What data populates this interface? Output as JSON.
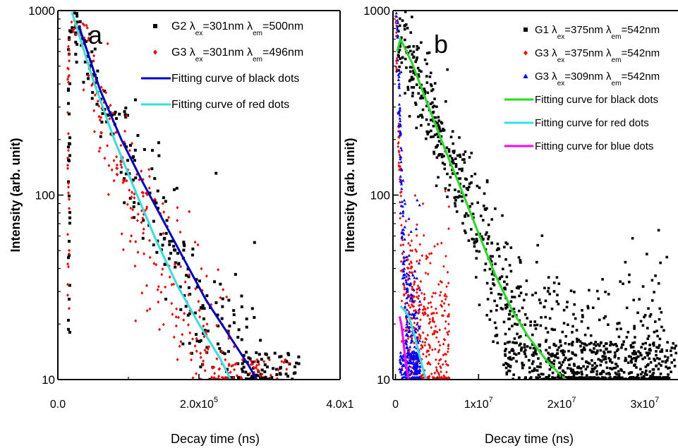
{
  "chart_data": [
    {
      "panel": "a",
      "type": "scatter",
      "y_scale": "log",
      "xlim": [
        0,
        400000
      ],
      "ylim": [
        10,
        1000
      ],
      "xlabel": "Decay time (ns)",
      "ylabel": "Intensity (arb. unit)",
      "x_ticks": [
        {
          "value": 0,
          "base": "0.0",
          "exp": ""
        },
        {
          "value": 200000,
          "base": "2.0x10",
          "exp": "5"
        },
        {
          "value": 400000,
          "base": "4.0x1",
          "exp": ""
        }
      ],
      "y_ticks": [
        {
          "value": 10,
          "label": "10"
        },
        {
          "value": 100,
          "label": "100"
        },
        {
          "value": 1000,
          "label": "1000"
        }
      ],
      "legend": [
        {
          "kind": "marker",
          "shape": "square",
          "color": "#000000",
          "parts": [
            "G2 λ",
            "ex",
            "=301nm λ",
            "em",
            "=500nm"
          ]
        },
        {
          "kind": "marker",
          "shape": "diamond",
          "color": "#ff0000",
          "parts": [
            "G3 λ",
            "ex",
            "=301nm λ",
            "em",
            "=496nm"
          ]
        },
        {
          "kind": "line",
          "color": "#0000cc",
          "label": "Fitting curve of black dots"
        },
        {
          "kind": "line",
          "color": "#33e0e0",
          "label": "Fitting curve of red dots"
        }
      ],
      "series": [
        {
          "name": "G2",
          "marker": "square",
          "color": "#000000",
          "noise": 0.09,
          "growth": 0.06,
          "decay": [
            [
              18000,
              1000
            ],
            [
              40000,
              600
            ],
            [
              60000,
              350
            ],
            [
              80000,
              220
            ],
            [
              100000,
              160
            ],
            [
              120000,
              110
            ],
            [
              140000,
              75
            ],
            [
              160000,
              52
            ],
            [
              180000,
              38
            ],
            [
              200000,
              28
            ],
            [
              220000,
              20
            ],
            [
              240000,
              15
            ],
            [
              260000,
              12
            ],
            [
              280000,
              10
            ],
            [
              300000,
              10
            ]
          ],
          "rise_x": [
            15000,
            16000,
            17000
          ],
          "rise_range": [
            15,
            900
          ],
          "tail_range": [
            10,
            14
          ],
          "tail_x": [
            260000,
            345000
          ]
        },
        {
          "name": "G3",
          "marker": "diamond",
          "color": "#ff0000",
          "noise": 0.1,
          "growth": 0.07,
          "decay": [
            [
              18000,
              1000
            ],
            [
              40000,
              550
            ],
            [
              60000,
              300
            ],
            [
              80000,
              170
            ],
            [
              100000,
              110
            ],
            [
              120000,
              70
            ],
            [
              140000,
              50
            ],
            [
              160000,
              35
            ],
            [
              180000,
              25
            ],
            [
              200000,
              18
            ],
            [
              220000,
              13
            ],
            [
              240000,
              10
            ],
            [
              250000,
              10
            ]
          ],
          "rise_x": [
            14000,
            15000,
            16000
          ],
          "rise_range": [
            16,
            950
          ],
          "tail_range": [
            10,
            13
          ],
          "tail_x": [
            220000,
            330000
          ]
        }
      ],
      "fits": [
        {
          "name": "Fitting curve of black dots",
          "color": "#0000cc",
          "points": [
            [
              30000,
              820
            ],
            [
              60000,
              370
            ],
            [
              90000,
              200
            ],
            [
              120000,
              118
            ],
            [
              150000,
              72
            ],
            [
              180000,
              44
            ],
            [
              210000,
              27
            ],
            [
              240000,
              18
            ],
            [
              270000,
              12
            ],
            [
              282000,
              10
            ]
          ]
        },
        {
          "name": "Fitting curve of red dots",
          "color": "#33e0e0",
          "points": [
            [
              20000,
              980
            ],
            [
              50000,
              420
            ],
            [
              80000,
              200
            ],
            [
              110000,
              105
            ],
            [
              140000,
              56
            ],
            [
              170000,
              32
            ],
            [
              200000,
              20
            ],
            [
              230000,
              13
            ],
            [
              245000,
              10
            ]
          ]
        }
      ],
      "panel_label": "a"
    },
    {
      "panel": "b",
      "type": "scatter",
      "y_scale": "log",
      "xlim": [
        -300000,
        34000000
      ],
      "ylim": [
        10,
        1000
      ],
      "xlabel": "Decay time (ns)",
      "ylabel": "Intensity (arb. unit)",
      "x_ticks": [
        {
          "value": 0,
          "base": "0",
          "exp": ""
        },
        {
          "value": 10000000,
          "base": "1x10",
          "exp": "7"
        },
        {
          "value": 20000000,
          "base": "2x10",
          "exp": "7"
        },
        {
          "value": 30000000,
          "base": "3x10",
          "exp": "7"
        }
      ],
      "y_ticks": [
        {
          "value": 10,
          "label": "10"
        },
        {
          "value": 100,
          "label": "100"
        },
        {
          "value": 1000,
          "label": "1000"
        }
      ],
      "legend": [
        {
          "kind": "marker",
          "shape": "square",
          "color": "#000000",
          "parts": [
            "G1 λ",
            "ex",
            "=375nm  λ",
            "em",
            "=542nm"
          ]
        },
        {
          "kind": "marker",
          "shape": "diamond",
          "color": "#ff0000",
          "parts": [
            "G3 λ",
            "ex",
            "=375nm  λ",
            "em",
            "=542nm"
          ]
        },
        {
          "kind": "marker",
          "shape": "triangle",
          "color": "#0000ff",
          "parts": [
            "G3 λ",
            "ex",
            "=309nm  λ",
            "em",
            "=542nm"
          ]
        },
        {
          "kind": "line",
          "color": "#22dd22",
          "label": "Fitting curve for black dots"
        },
        {
          "kind": "line",
          "color": "#33e0e0",
          "label": "Fitting curve for red dots"
        },
        {
          "kind": "line",
          "color": "#ff00ff",
          "label": "Fitting curve for blue dots"
        }
      ],
      "series": [
        {
          "name": "G1",
          "marker": "square",
          "color": "#000000",
          "noise": 0.1,
          "growth": 0.08,
          "decay": [
            [
              300000,
              600
            ],
            [
              1000000,
              650
            ],
            [
              3000000,
              400
            ],
            [
              5000000,
              230
            ],
            [
              7000000,
              140
            ],
            [
              9000000,
              80
            ],
            [
              11000000,
              45
            ],
            [
              13000000,
              28
            ],
            [
              15000000,
              20
            ],
            [
              17000000,
              15
            ],
            [
              19000000,
              12
            ],
            [
              21000000,
              11
            ],
            [
              23000000,
              10.5
            ],
            [
              25000000,
              10.5
            ],
            [
              27000000,
              10.5
            ],
            [
              29000000,
              10.5
            ],
            [
              31000000,
              10.5
            ],
            [
              33000000,
              10.5
            ]
          ],
          "rise_x": [],
          "rise_range": [
            10,
            10
          ],
          "tail_range": [
            10.5,
            16
          ],
          "tail_x": [
            13000000,
            34000000
          ]
        },
        {
          "name": "G3",
          "marker": "diamond",
          "color": "#ff0000",
          "noise": 0.12,
          "growth": 0.1,
          "decay": [
            [
              0,
              1000
            ],
            [
              200000,
              500
            ],
            [
              400000,
              200
            ],
            [
              600000,
              90
            ],
            [
              800000,
              50
            ],
            [
              1000000,
              35
            ],
            [
              1500000,
              28
            ],
            [
              2000000,
              25
            ],
            [
              2500000,
              22
            ],
            [
              3000000,
              20
            ],
            [
              3500000,
              18
            ],
            [
              4000000,
              15
            ],
            [
              4500000,
              13
            ],
            [
              5000000,
              12
            ],
            [
              5500000,
              11
            ],
            [
              6000000,
              10.5
            ],
            [
              6500000,
              10.2
            ]
          ],
          "rise_x": [],
          "rise_range": [
            10,
            10
          ],
          "tail_range": [
            10,
            30
          ],
          "tail_x": [
            600000,
            6500000
          ]
        },
        {
          "name": "G3",
          "marker": "triangle",
          "color": "#0000ff",
          "noise": 0.12,
          "growth": 0.08,
          "decay": [
            [
              100000,
              1000
            ],
            [
              300000,
              600
            ],
            [
              500000,
              300
            ],
            [
              700000,
              150
            ],
            [
              900000,
              60
            ],
            [
              1100000,
              30
            ],
            [
              1400000,
              18
            ],
            [
              1800000,
              14
            ],
            [
              2200000,
              12
            ],
            [
              2600000,
              11
            ],
            [
              3000000,
              10.5
            ]
          ],
          "rise_x": [],
          "rise_range": [
            10,
            10
          ],
          "tail_range": [
            10,
            14
          ],
          "tail_x": [
            500000,
            3000000
          ]
        }
      ],
      "fits": [
        {
          "name": "Fitting curve for black dots",
          "color": "#22dd22",
          "points": [
            [
              200000,
              600
            ],
            [
              600000,
              700
            ],
            [
              2000000,
              520
            ],
            [
              4000000,
              300
            ],
            [
              6000000,
              175
            ],
            [
              8000000,
              105
            ],
            [
              10000000,
              62
            ],
            [
              12000000,
              37
            ],
            [
              14000000,
              24
            ],
            [
              16000000,
              17
            ],
            [
              18000000,
              13
            ],
            [
              19500000,
              11
            ],
            [
              20500000,
              10
            ]
          ]
        },
        {
          "name": "Fitting curve for red dots",
          "color": "#33e0e0",
          "points": [
            [
              600000,
              25
            ],
            [
              1000000,
              24
            ],
            [
              1600000,
              22
            ],
            [
              2200000,
              18
            ],
            [
              2800000,
              14
            ],
            [
              3400000,
              11
            ],
            [
              3700000,
              10
            ]
          ]
        },
        {
          "name": "Fitting curve for blue dots",
          "color": "#ff00ff",
          "points": [
            [
              500000,
              22
            ],
            [
              700000,
              20
            ],
            [
              900000,
              17
            ],
            [
              1100000,
              14
            ],
            [
              1300000,
              12
            ],
            [
              1500000,
              10.5
            ],
            [
              1600000,
              10
            ]
          ]
        }
      ],
      "panel_label": "b"
    }
  ]
}
